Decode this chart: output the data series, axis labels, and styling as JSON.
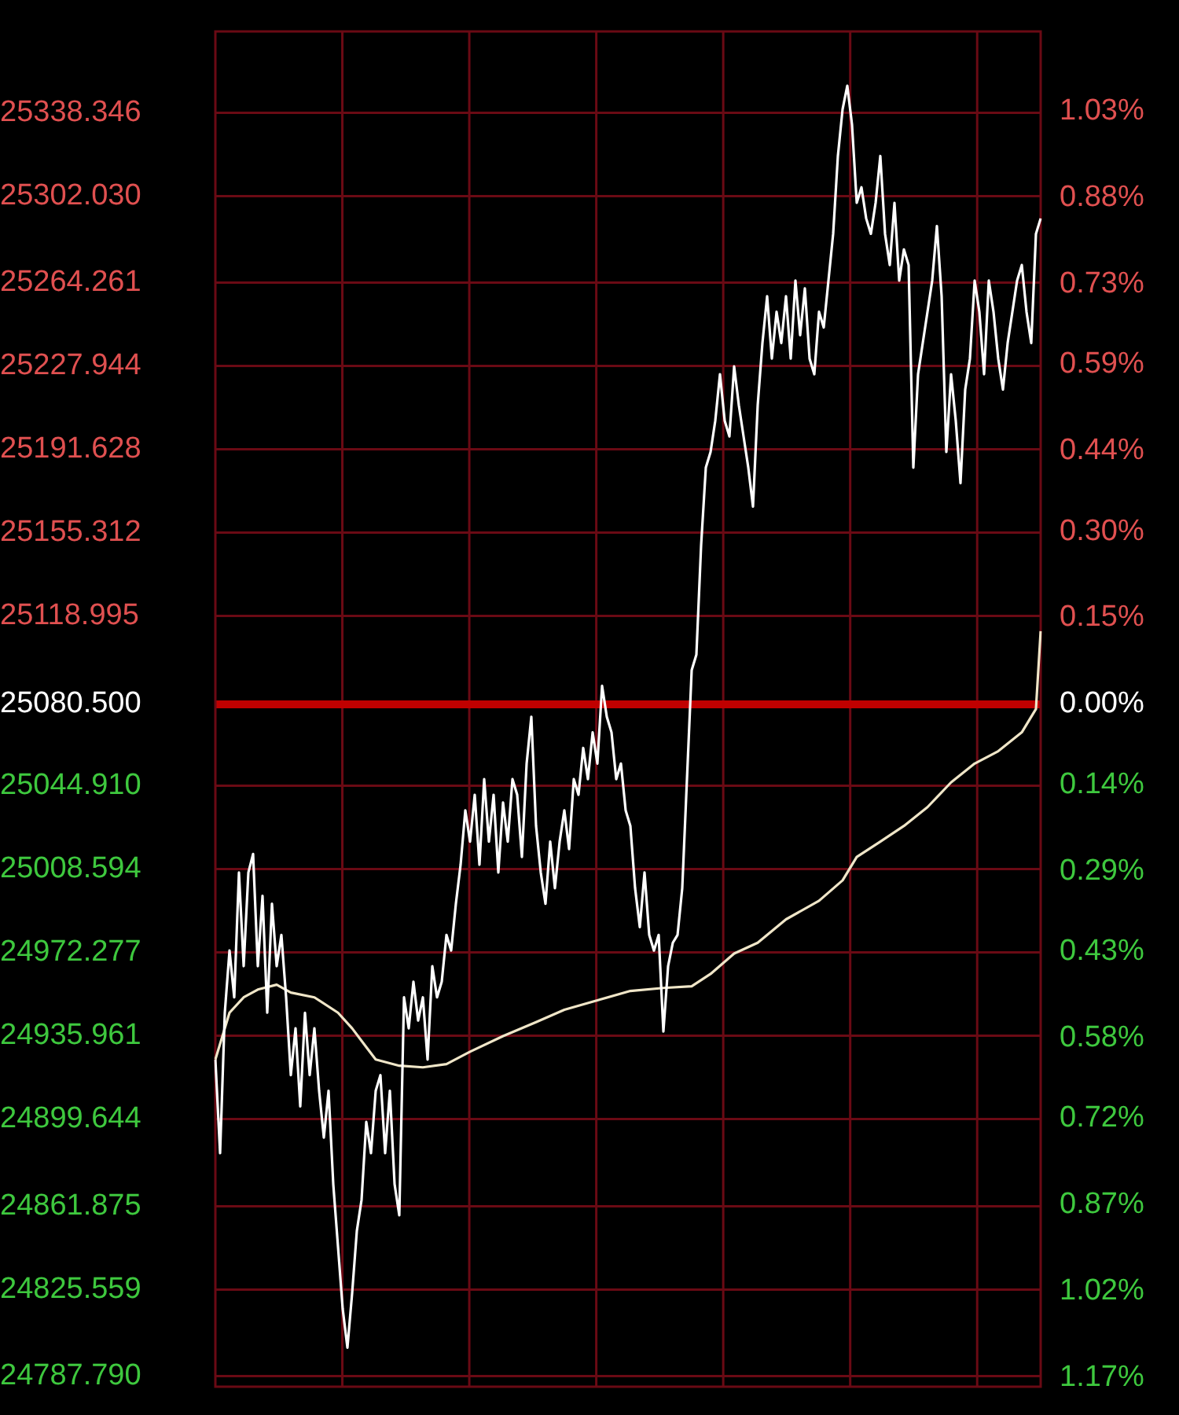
{
  "chart_data": {
    "type": "line",
    "categories": [
      null,
      null,
      null,
      null,
      null,
      null,
      null,
      null,
      null,
      null,
      null,
      null,
      null,
      null,
      null,
      null,
      null,
      null,
      null,
      null,
      null,
      null,
      null,
      null,
      null,
      null,
      null,
      null,
      null,
      null,
      null,
      null,
      null,
      null,
      null,
      null,
      null,
      null,
      null,
      null,
      null,
      null,
      null,
      null,
      null,
      null,
      null,
      null,
      null,
      null,
      null,
      null,
      null,
      null,
      null,
      null,
      null,
      null,
      null,
      null,
      null,
      null,
      null,
      null,
      null,
      null,
      null,
      null,
      null,
      null,
      null,
      null,
      null,
      null,
      null,
      null,
      null,
      null,
      null,
      null,
      null,
      null,
      null,
      null,
      null,
      null,
      null,
      null,
      null,
      null,
      null,
      null,
      null,
      null,
      null,
      null,
      null,
      null,
      null,
      null,
      null,
      null,
      null,
      null,
      null,
      null,
      null,
      null,
      null,
      null,
      null,
      null,
      null,
      null,
      null,
      null,
      null,
      null,
      null,
      null,
      null,
      null,
      null,
      null,
      null,
      null,
      null,
      null,
      null,
      null,
      null,
      null,
      null,
      null,
      null,
      null,
      null,
      null,
      null,
      null,
      null,
      null,
      null,
      null,
      null,
      null,
      null,
      null,
      null,
      null,
      null,
      null,
      null,
      null,
      null,
      null,
      null,
      null,
      null,
      null,
      null,
      null,
      null,
      null,
      null,
      null,
      null,
      null,
      null,
      null,
      null,
      null,
      null,
      null,
      null,
      null
    ],
    "ylim": [
      24783.1,
      25373.8
    ],
    "yticks": [
      25338.346,
      {
        "value": 25302.03,
        "label": "25302.030"
      },
      25264.261,
      25227.944,
      25191.628,
      25155.312,
      25118.995,
      {
        "value": 25080.5,
        "label": "25080.500"
      },
      {
        "value": 25044.91,
        "label": "25044.910"
      },
      25008.594,
      24972.277,
      24935.961,
      24899.644,
      24861.875,
      24825.559,
      {
        "value": 24787.79,
        "label": "24787.790"
      }
    ],
    "y2lim": [
      -1.186,
      1.169
    ],
    "y2ticks": [
      {
        "value": 1.03,
        "label": "1.03%"
      },
      {
        "value": 0.88,
        "label": "0.88%"
      },
      {
        "value": 0.73,
        "label": "0.73%"
      },
      {
        "value": 0.59,
        "label": "0.59%"
      },
      {
        "value": 0.44,
        "label": "0.44%"
      },
      {
        "value": 0.3,
        "label": "0.30%"
      },
      {
        "value": 0.15,
        "label": "0.15%"
      },
      {
        "value": 0,
        "label": "0.00%"
      },
      {
        "value": -0.14,
        "label": "0.14%"
      },
      {
        "value": -0.29,
        "label": "0.29%"
      },
      {
        "value": -0.43,
        "label": "0.43%"
      },
      {
        "value": -0.58,
        "label": "0.58%"
      },
      {
        "value": -0.72,
        "label": "0.72%"
      },
      {
        "value": -0.87,
        "label": "0.87%"
      },
      {
        "value": -1.02,
        "label": "1.02%"
      },
      {
        "value": -1.17,
        "label": "1.17%"
      }
    ],
    "grid": true,
    "legend": false,
    "marker": "none",
    "line_style": "solid",
    "ref_lines": [
      {
        "axis": "y",
        "value": 25080.5,
        "label": null,
        "color": "#c00000"
      }
    ],
    "series": [
      {
        "color": "#ffffff",
        "values": [
          24925.7,
          24884.9,
          24946.1,
          24973.2,
          24952.8,
          25007.2,
          24966.4,
          25007.2,
          25015.3,
          24966.4,
          24997.0,
          24946.1,
          24993.6,
          24966.4,
          24980.0,
          24952.8,
          24918.9,
          24939.3,
          24905.3,
          24946.1,
          24918.9,
          24939.3,
          24912.1,
          24891.7,
          24912.1,
          24871.4,
          24844.2,
          24817.0,
          24800.1,
          24823.8,
          24851.0,
          24864.6,
          24898.5,
          24884.9,
          24912.1,
          24918.9,
          24884.9,
          24912.1,
          24871.4,
          24857.8,
          24952.8,
          24939.3,
          24959.6,
          24942.7,
          24952.8,
          24925.7,
          24966.4,
          24952.8,
          24959.6,
          24980.0,
          24973.2,
          24993.6,
          25010.6,
          25034.3,
          25020.7,
          25041.1,
          25010.6,
          25047.9,
          25020.7,
          25041.1,
          25007.2,
          25037.7,
          25020.7,
          25047.9,
          25041.1,
          25014.0,
          25054.7,
          25075.1,
          25027.5,
          25007.2,
          24993.6,
          25020.7,
          25000.4,
          25020.7,
          25034.3,
          25017.4,
          25047.9,
          25041.1,
          25061.5,
          25047.9,
          25068.3,
          25054.7,
          25088.6,
          25075.1,
          25068.3,
          25047.9,
          25054.7,
          25034.3,
          25027.5,
          25000.4,
          24983.4,
          25007.2,
          24980.0,
          24973.2,
          24980.0,
          24937.9,
          24966.4,
          24976.6,
          24980.0,
          25000.4,
          25047.9,
          25095.4,
          25102.2,
          25149.8,
          25183.7,
          25190.5,
          25204.1,
          25224.4,
          25204.1,
          25197.3,
          25227.8,
          25210.9,
          25197.3,
          25183.7,
          25166.7,
          25210.9,
          25238.0,
          25258.4,
          25231.2,
          25251.6,
          25238.0,
          25258.4,
          25231.2,
          25265.2,
          25241.4,
          25261.8,
          25231.2,
          25224.4,
          25251.6,
          25244.8,
          25265.2,
          25285.6,
          25319.5,
          25339.9,
          25350.1,
          25333.1,
          25299.1,
          25305.9,
          25292.3,
          25285.6,
          25299.1,
          25319.5,
          25285.6,
          25272.0,
          25299.1,
          25265.2,
          25278.8,
          25272.0,
          25183.7,
          25224.4,
          25238.0,
          25251.6,
          25265.2,
          25289.0,
          25258.4,
          25190.5,
          25224.4,
          25204.1,
          25176.9,
          25217.7,
          25231.2,
          25265.2,
          25251.6,
          25224.4,
          25265.2,
          25251.6,
          25231.2,
          25217.7,
          25238.0,
          25251.6,
          25265.2,
          25272.0,
          25251.6,
          25238.0,
          25285.6,
          25292.3
        ]
      },
      {
        "color": "#f0e6c8",
        "values": [
          24925.7,
          null,
          null,
          24946.1,
          null,
          null,
          24952.8,
          null,
          null,
          24956.2,
          null,
          null,
          null,
          24958.3,
          null,
          null,
          24954.9,
          null,
          null,
          null,
          null,
          24952.8,
          null,
          null,
          null,
          null,
          24946.1,
          null,
          null,
          24939.3,
          null,
          null,
          24931.1,
          null,
          24925.7,
          null,
          null,
          null,
          null,
          24923.0,
          null,
          null,
          null,
          null,
          24922.3,
          null,
          null,
          null,
          null,
          24923.7,
          null,
          null,
          null,
          null,
          24929.1,
          null,
          null,
          null,
          null,
          null,
          null,
          24935.9,
          null,
          null,
          null,
          null,
          null,
          null,
          24942.0,
          null,
          null,
          null,
          null,
          null,
          24947.4,
          null,
          null,
          null,
          null,
          null,
          null,
          24951.5,
          null,
          null,
          null,
          null,
          null,
          null,
          24955.6,
          null,
          null,
          null,
          null,
          null,
          null,
          24956.9,
          null,
          null,
          null,
          null,
          null,
          24957.6,
          null,
          null,
          null,
          24963.0,
          null,
          null,
          null,
          null,
          24971.9,
          null,
          null,
          null,
          null,
          24976.6,
          null,
          null,
          null,
          null,
          null,
          24986.8,
          null,
          null,
          null,
          null,
          null,
          null,
          24994.9,
          null,
          null,
          null,
          null,
          25003.8,
          null,
          null,
          25014.0,
          null,
          null,
          null,
          null,
          25020.7,
          null,
          null,
          null,
          null,
          25027.5,
          null,
          null,
          null,
          null,
          25035.7,
          null,
          null,
          null,
          null,
          25046.5,
          null,
          null,
          null,
          null,
          25054.7,
          null,
          null,
          null,
          null,
          25060.1,
          null,
          null,
          null,
          null,
          25068.3,
          null,
          null,
          25078.5,
          25112.4
        ]
      }
    ]
  }
}
